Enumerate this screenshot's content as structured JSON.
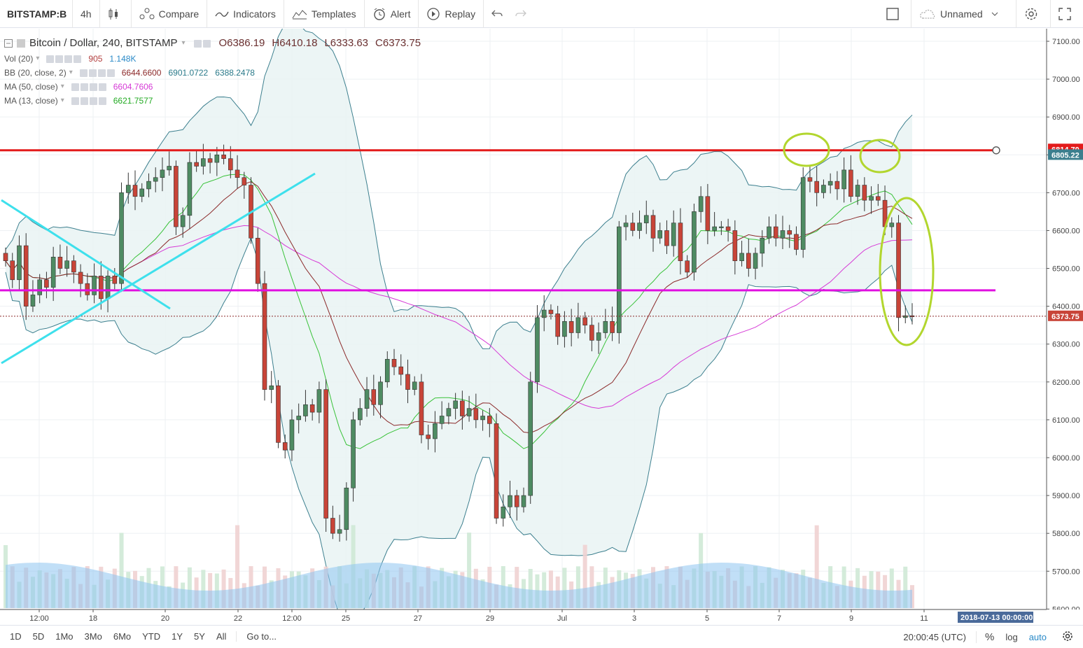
{
  "toolbar": {
    "symbol": "BITSTAMP:B",
    "interval": "4h",
    "compare": "Compare",
    "indicators": "Indicators",
    "templates": "Templates",
    "alert": "Alert",
    "replay": "Replay",
    "layout_name": "Unnamed"
  },
  "legend": {
    "title": "Bitcoin / Dollar, 240, BITSTAMP",
    "open": "O6386.19",
    "high": "H6410.18",
    "low": "L6333.63",
    "close": "C6373.75",
    "vol_label": "Vol (20)",
    "vol_v1": "905",
    "vol_v2": "1.148K",
    "bb_label": "BB (20, close, 2)",
    "bb_v1": "6644.6600",
    "bb_v2": "6901.0722",
    "bb_v3": "6388.2478",
    "ma50_label": "MA (50, close)",
    "ma50_v": "6604.7606",
    "ma13_label": "MA (13, close)",
    "ma13_v": "6621.7577"
  },
  "colors": {
    "up": "#4e8b62",
    "down": "#c84438",
    "bb_fill": "#e9f3f3",
    "bb_line": "#3c7f8e",
    "ma50": "#d63ad6",
    "ma13": "#38c238",
    "bb_mid": "#8b2a2a",
    "red_line": "#e31b1b",
    "magenta_line": "#e010e0",
    "cyan_line": "#3ee0ec",
    "ellipse": "#b2d62e"
  },
  "chart_data": {
    "type": "candlestick",
    "y_ticks": [
      "7100.00",
      "7000.00",
      "6900.00",
      "6800.00",
      "6700.00",
      "6600.00",
      "6500.00",
      "6400.00",
      "6300.00",
      "6200.00",
      "6100.00",
      "6000.00",
      "5900.00",
      "5800.00",
      "5700.00",
      "5600.00"
    ],
    "x_ticks": [
      "12:00",
      "18",
      "20",
      "22",
      "12:00",
      "25",
      "27",
      "29",
      "Jul",
      "3",
      "5",
      "7",
      "9",
      "11"
    ],
    "price_labels": [
      "6814.70",
      "6805.22",
      "6373.75"
    ],
    "time_label": "2018-07-13 00:00:00",
    "support_resistance": [
      6812,
      6442
    ],
    "current_price": 6373.75
  },
  "bottom": {
    "ranges": [
      "1D",
      "5D",
      "1Mo",
      "3Mo",
      "6Mo",
      "YTD",
      "1Y",
      "5Y",
      "All"
    ],
    "goto": "Go to...",
    "clock": "20:00:45 (UTC)",
    "pct": "%",
    "log": "log",
    "auto": "auto"
  }
}
